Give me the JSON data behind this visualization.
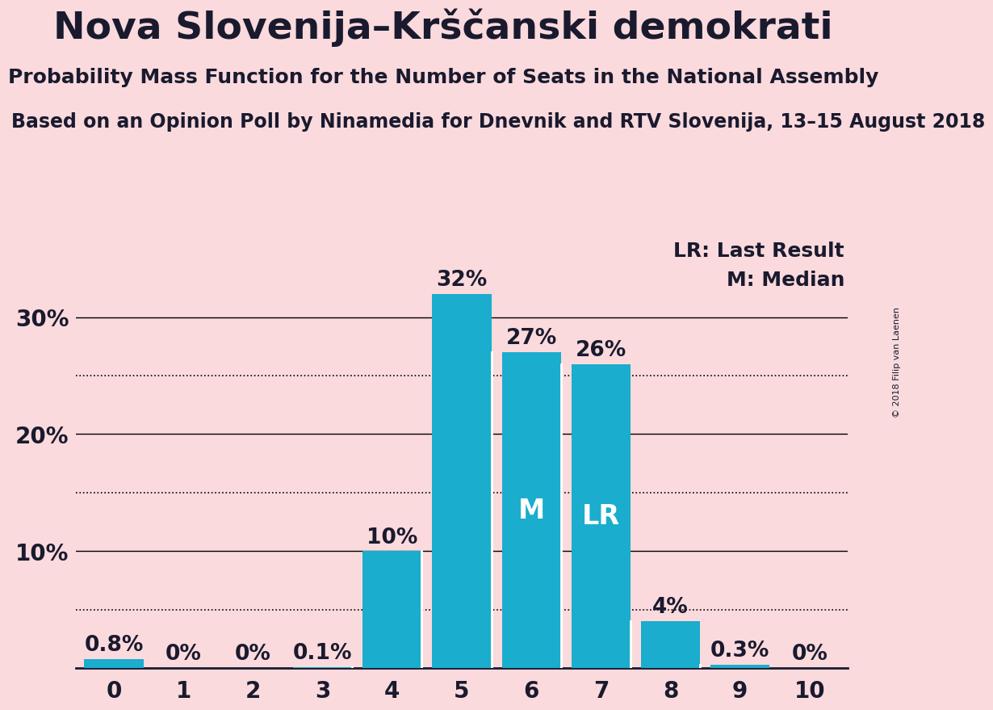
{
  "title": "Nova Slovenija–Krščanski demokrati",
  "subtitle": "Probability Mass Function for the Number of Seats in the National Assembly",
  "source": "Based on an Opinion Poll by Ninamedia for Dnevnik and RTV Slovenija, 13–15 August 2018",
  "copyright": "© 2018 Filip van Laenen",
  "categories": [
    0,
    1,
    2,
    3,
    4,
    5,
    6,
    7,
    8,
    9,
    10
  ],
  "values": [
    0.8,
    0.0,
    0.0,
    0.1,
    10.0,
    32.0,
    27.0,
    26.0,
    4.0,
    0.3,
    0.0
  ],
  "labels": [
    "0.8%",
    "0%",
    "0%",
    "0.1%",
    "10%",
    "32%",
    "27%",
    "26%",
    "4%",
    "0.3%",
    "0%"
  ],
  "bar_color": "#1aadcd",
  "background_color": "#fadadd",
  "text_color": "#1a1a2e",
  "median_bar": 6,
  "lr_bar": 7,
  "median_label": "M",
  "lr_label": "LR",
  "legend_lr": "LR: Last Result",
  "legend_m": "M: Median",
  "ylim": [
    0,
    37
  ],
  "solid_grid": [
    10,
    20,
    30
  ],
  "dotted_grid": [
    5,
    15,
    25
  ],
  "ytick_positions": [
    10,
    20,
    30
  ],
  "ytick_labels": [
    "10%",
    "20%",
    "30%"
  ],
  "title_fontsize": 34,
  "subtitle_fontsize": 18,
  "source_fontsize": 17,
  "tick_fontsize": 20,
  "bar_label_fontsize": 19,
  "inner_label_fontsize": 24,
  "legend_fontsize": 18
}
